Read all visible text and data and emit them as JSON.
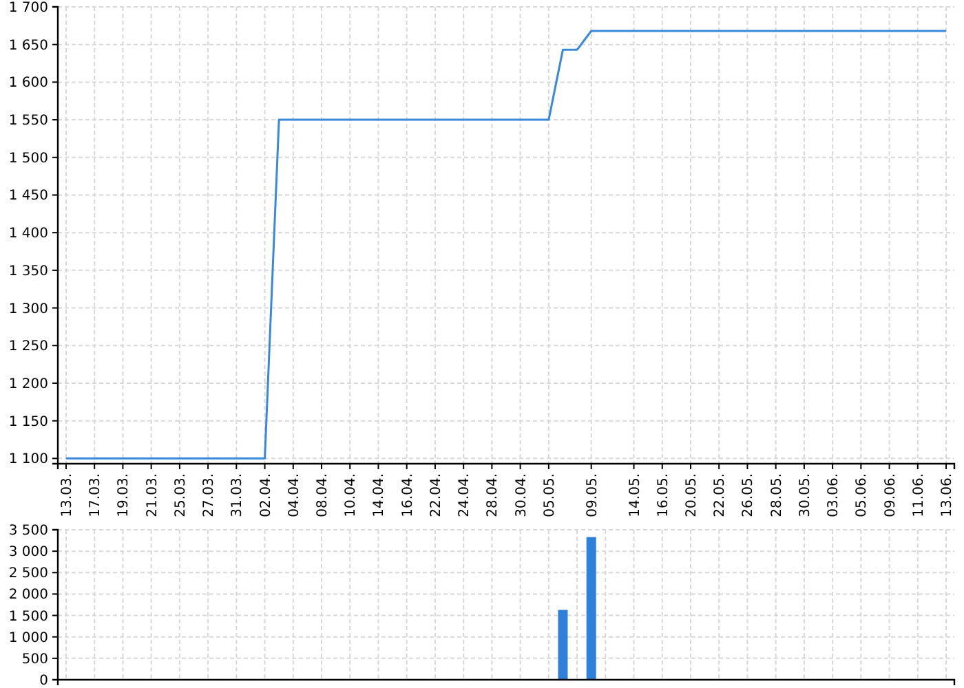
{
  "chart_data": [
    {
      "type": "line",
      "categories": [
        "13.03.",
        null,
        "17.03.",
        null,
        "19.03.",
        null,
        "21.03.",
        null,
        "25.03.",
        null,
        "27.03.",
        null,
        "31.03.",
        null,
        "02.04.",
        null,
        "04.04.",
        null,
        "08.04.",
        null,
        "10.04.",
        null,
        "14.04.",
        null,
        "16.04.",
        null,
        "22.04.",
        null,
        "24.04.",
        null,
        "28.04.",
        null,
        "30.04.",
        null,
        "05.05.",
        null,
        null,
        "09.05.",
        null,
        null,
        "14.05.",
        null,
        "16.05.",
        null,
        "20.05.",
        null,
        "22.05.",
        null,
        "26.05.",
        null,
        "28.05.",
        null,
        "30.05.",
        null,
        "03.06.",
        null,
        "05.06.",
        null,
        "09.06.",
        null,
        "11.06.",
        null,
        "13.06."
      ],
      "series": [
        {
          "color": "#3a88dc",
          "values": [
            1100,
            1100,
            1100,
            1100,
            1100,
            1100,
            1100,
            1100,
            1100,
            1100,
            1100,
            1100,
            1100,
            1100,
            1100,
            1550,
            1550,
            1550,
            1550,
            1550,
            1550,
            1550,
            1550,
            1550,
            1550,
            1550,
            1550,
            1550,
            1550,
            1550,
            1550,
            1550,
            1550,
            1550,
            1550,
            1643,
            1643,
            1668,
            1668,
            1668,
            1668,
            1668,
            1668,
            1668,
            1668,
            1668,
            1668,
            1668,
            1668,
            1668,
            1668,
            1668,
            1668,
            1668,
            1668,
            1668,
            1668,
            1668,
            1668,
            1668,
            1668,
            1668,
            1668
          ]
        }
      ],
      "ylim": [
        1093,
        1700
      ],
      "yticks": [
        {
          "value": 1100,
          "label": "1 100"
        },
        {
          "value": 1150,
          "label": "1 150"
        },
        {
          "value": 1200,
          "label": "1 200"
        },
        {
          "value": 1250,
          "label": "1 250"
        },
        {
          "value": 1300,
          "label": "1 300"
        },
        {
          "value": 1350,
          "label": "1 350"
        },
        {
          "value": 1400,
          "label": "1 400"
        },
        {
          "value": 1450,
          "label": "1 450"
        },
        {
          "value": 1500,
          "label": "1 500"
        },
        {
          "value": 1550,
          "label": "1 550"
        },
        {
          "value": 1600,
          "label": "1 600"
        },
        {
          "value": 1650,
          "label": "1 650"
        },
        {
          "value": 1700,
          "label": "1 700"
        }
      ],
      "grid": true,
      "marker": "none",
      "line_style": "solid"
    },
    {
      "type": "bar",
      "categories": [
        null,
        null,
        null,
        null,
        null,
        null,
        null,
        null,
        null,
        null,
        null,
        null,
        null,
        null,
        null,
        null,
        null,
        null,
        null,
        null,
        null,
        null,
        null,
        null,
        null,
        null,
        null,
        null,
        null,
        null,
        null,
        null,
        null,
        null,
        null,
        null,
        null,
        null,
        null,
        null,
        null,
        null,
        null,
        null,
        null,
        null,
        null,
        null,
        null,
        null,
        null,
        null,
        null,
        null,
        null,
        null,
        null,
        null,
        null,
        null,
        null,
        null,
        null
      ],
      "series": [
        {
          "color": "#2f80d8",
          "values": [
            null,
            null,
            null,
            null,
            null,
            null,
            null,
            null,
            null,
            null,
            null,
            null,
            null,
            null,
            null,
            null,
            null,
            null,
            null,
            null,
            null,
            null,
            null,
            null,
            null,
            null,
            null,
            null,
            null,
            null,
            null,
            null,
            null,
            null,
            null,
            1630,
            null,
            3330,
            null,
            null,
            null,
            null,
            null,
            null,
            null,
            null,
            null,
            null,
            null,
            null,
            null,
            null,
            null,
            null,
            null,
            null,
            null,
            null,
            null,
            null,
            null,
            null,
            null
          ]
        }
      ],
      "ylim": [
        0,
        3500
      ],
      "yticks": [
        0,
        500,
        {
          "value": 1000,
          "label": "1 000"
        },
        {
          "value": 1500,
          "label": "1 500"
        },
        {
          "value": 2000,
          "label": "2 000"
        },
        {
          "value": 2500,
          "label": "2 500"
        },
        {
          "value": 3000,
          "label": "3 000"
        },
        {
          "value": 3500,
          "label": "3 500"
        }
      ],
      "grid": true,
      "tick_labels": "y"
    }
  ]
}
